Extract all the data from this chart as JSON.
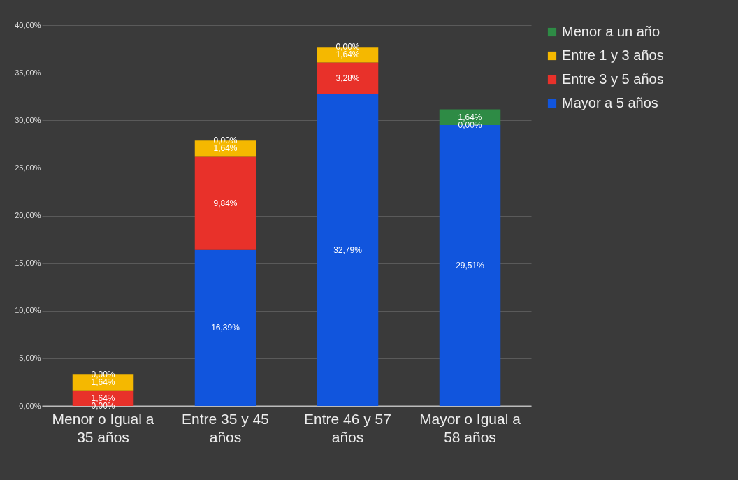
{
  "chart_data": {
    "type": "bar",
    "stacked": true,
    "categories": [
      "Menor o Igual a 35 años",
      "Entre 35 y 45 años",
      "Entre 46 y 57 años",
      "Mayor o Igual a 58 años"
    ],
    "series": [
      {
        "name": "Mayor a 5 años",
        "color": "#1155dd",
        "values": [
          0,
          16.39,
          32.79,
          29.51
        ],
        "value_labels": [
          "0,00%",
          "16,39%",
          "32,79%",
          "29,51%"
        ]
      },
      {
        "name": "Entre 3 y 5 años",
        "color": "#e8312a",
        "values": [
          1.64,
          9.84,
          3.28,
          0
        ],
        "value_labels": [
          "1,64%",
          "9,84%",
          "3,28%",
          "0,00%"
        ]
      },
      {
        "name": "Entre 1 y 3 años",
        "color": "#f5b800",
        "values": [
          1.64,
          1.64,
          1.64,
          0
        ],
        "value_labels": [
          "1,64%",
          "1,64%",
          "1,64%",
          null
        ]
      },
      {
        "name": "Menor a un año",
        "color": "#2e8b45",
        "values": [
          0,
          0,
          0,
          1.64
        ],
        "value_labels": [
          "0,00%",
          "0,00%",
          "0,00%",
          "1,64%"
        ]
      }
    ],
    "ylim": [
      0,
      40
    ],
    "yticks": [
      {
        "value": 0,
        "label": "0,00%"
      },
      {
        "value": 5,
        "label": "5,00%"
      },
      {
        "value": 10,
        "label": "10,00%"
      },
      {
        "value": 15,
        "label": "15,00%"
      },
      {
        "value": 20,
        "label": "20,00%"
      },
      {
        "value": 25,
        "label": "25,00%"
      },
      {
        "value": 30,
        "label": "30,00%"
      },
      {
        "value": 35,
        "label": "35,00%"
      },
      {
        "value": 40,
        "label": "40,00%"
      }
    ],
    "grid": "y",
    "legend": "right"
  }
}
